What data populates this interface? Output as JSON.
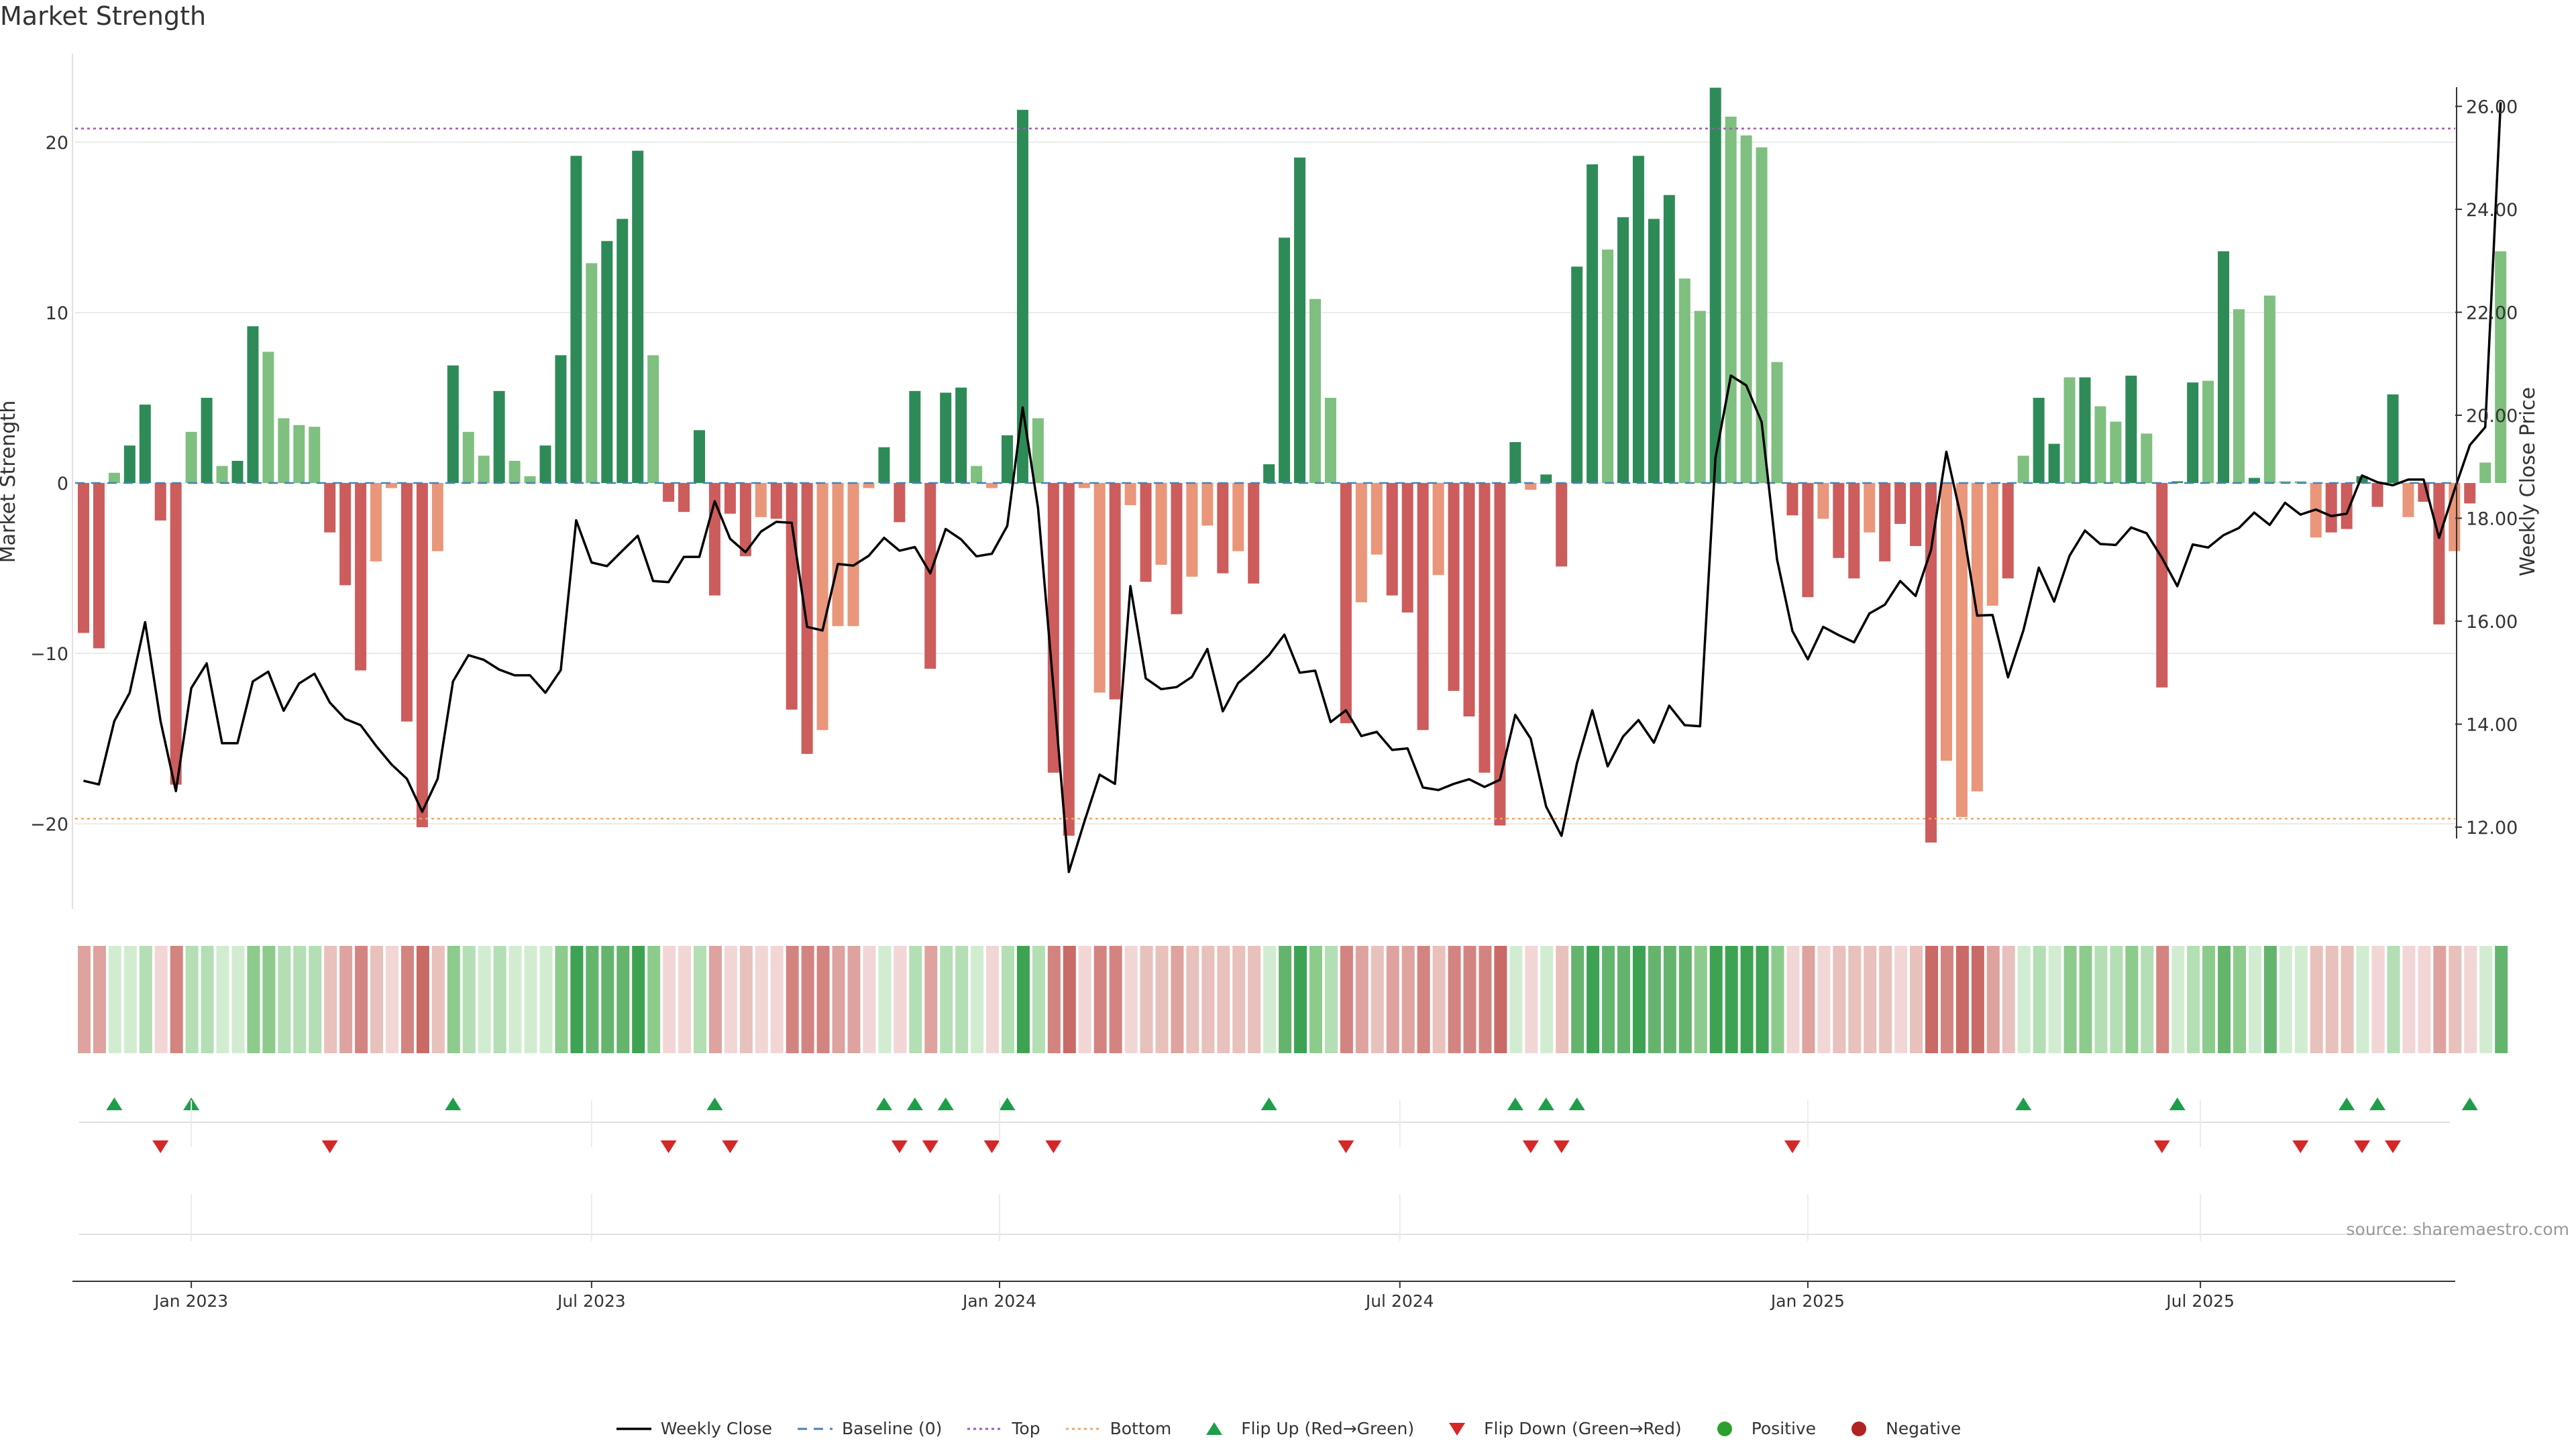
{
  "chart_title": "Market Strength",
  "source_note": "source: sharemaestro.com",
  "colors": {
    "strong_green": "#2e8b57",
    "light_green": "#7fbf7f",
    "strong_red": "#cd5c5c",
    "light_red": "#e9967a",
    "line": "#000000",
    "top_line": "#9b59b6",
    "bottom_line": "#f4a460",
    "baseline": "#4682b4",
    "flip_up": "#1e9e4a",
    "flip_down": "#d62728",
    "grid": "#ebebeb",
    "axis_text": "#333333"
  },
  "legend": [
    {
      "key": "weekly_close",
      "label": "Weekly Close",
      "kind": "line",
      "color": "#000000"
    },
    {
      "key": "baseline",
      "label": "Baseline (0)",
      "kind": "dash",
      "color": "#4682b4"
    },
    {
      "key": "top",
      "label": "Top",
      "kind": "dot",
      "color": "#9b59b6"
    },
    {
      "key": "bottom",
      "label": "Bottom",
      "kind": "dot",
      "color": "#f4a460"
    },
    {
      "key": "flip_up",
      "label": "Flip Up (Red→Green)",
      "kind": "tri-up",
      "color": "#1e9e4a"
    },
    {
      "key": "flip_down",
      "label": "Flip Down (Green→Red)",
      "kind": "tri-down",
      "color": "#d62728"
    },
    {
      "key": "positive",
      "label": "Positive",
      "kind": "circle",
      "color": "#2ca02c"
    },
    {
      "key": "negative",
      "label": "Negative",
      "kind": "circle",
      "color": "#b22222"
    }
  ],
  "chart_data": {
    "type": "bar+line",
    "title": "Market Strength",
    "ylabel": "Market Strength",
    "y2label": "Weekly Close Price",
    "ylim": [
      -25.5,
      25
    ],
    "y2lim": [
      10.8,
      26.4
    ],
    "y_ticks": [
      "20",
      "10",
      "0",
      "−10",
      "−20"
    ],
    "y_tick_values": [
      20,
      10,
      0,
      -10,
      -20
    ],
    "y2_ticks": [
      "12.00",
      "14.00",
      "16.00",
      "18.00",
      "20.00",
      "22.00",
      "24.00",
      "26.00"
    ],
    "y2_tick_values": [
      12,
      14,
      16,
      18,
      20,
      22,
      24,
      26
    ],
    "x_labels": [
      "Jan 2023",
      "Jul 2023",
      "Jan 2024",
      "Jul 2024",
      "Jan 2025",
      "Jul 2025"
    ],
    "x_label_weeks": [
      7,
      33,
      59.5,
      85.5,
      112,
      137.5
    ],
    "top_level": 20.8,
    "bottom_level": -19.7,
    "strength": [
      -8.8,
      -9.7,
      0.6,
      2.2,
      4.6,
      -2.2,
      -17.7,
      3.0,
      5.0,
      1.0,
      1.3,
      9.2,
      7.7,
      3.8,
      3.4,
      3.3,
      -2.9,
      -6.0,
      -11.0,
      -4.6,
      -0.3,
      -14.0,
      -20.2,
      -4.0,
      6.9,
      3.0,
      1.6,
      5.4,
      1.3,
      0.4,
      2.2,
      7.5,
      19.2,
      12.9,
      14.2,
      15.5,
      19.5,
      7.5,
      -1.1,
      -1.7,
      3.1,
      -6.6,
      -1.8,
      -4.3,
      -2.0,
      -2.1,
      -13.3,
      -15.9,
      -14.5,
      -8.4,
      -8.4,
      -0.3,
      2.1,
      -2.3,
      5.4,
      -10.9,
      5.3,
      5.6,
      1.0,
      -0.3,
      2.8,
      21.9,
      3.8,
      -17.0,
      -20.7,
      -0.3,
      -12.3,
      -12.7,
      -1.3,
      -5.8,
      -4.8,
      -7.7,
      -5.5,
      -2.5,
      -5.3,
      -4.0,
      -5.9,
      1.1,
      14.4,
      19.1,
      10.8,
      5.0,
      -14.1,
      -7.0,
      -4.2,
      -6.6,
      -7.6,
      -14.5,
      -5.4,
      -12.2,
      -13.7,
      -17.0,
      -20.1,
      2.4,
      -0.4,
      0.5,
      -4.9,
      12.7,
      18.7,
      13.7,
      15.6,
      19.2,
      15.5,
      16.9,
      12.0,
      10.1,
      23.2,
      21.5,
      20.4,
      19.7,
      7.1,
      -1.9,
      -6.7,
      -2.1,
      -4.4,
      -5.6,
      -2.9,
      -4.6,
      -2.4,
      -3.7,
      -21.1,
      -16.3,
      -19.6,
      -18.1,
      -7.2,
      -5.6,
      1.6,
      5.0,
      2.3,
      6.2,
      6.2,
      4.5,
      3.6,
      6.3,
      2.9,
      -12.0,
      0.1,
      5.9,
      6.0,
      13.6,
      10.2,
      0.3,
      11.0,
      0.1,
      0.1,
      -3.2,
      -2.9,
      -2.7,
      0.4,
      -1.4,
      5.2,
      -2.0,
      -1.1,
      -8.3,
      -4.0,
      -1.2,
      1.2,
      13.6
    ],
    "strength_shade": [
      1,
      1,
      0,
      1,
      1,
      1,
      1,
      0,
      1,
      0,
      1,
      1,
      0,
      0,
      0,
      0,
      1,
      1,
      1,
      0,
      0,
      1,
      1,
      0,
      1,
      0,
      0,
      1,
      0,
      0,
      1,
      1,
      1,
      0,
      1,
      1,
      1,
      0,
      1,
      1,
      1,
      1,
      1,
      1,
      0,
      1,
      1,
      1,
      0,
      0,
      0,
      0,
      1,
      1,
      1,
      1,
      1,
      1,
      0,
      0,
      1,
      1,
      0,
      1,
      1,
      0,
      0,
      1,
      0,
      1,
      0,
      1,
      0,
      0,
      1,
      0,
      1,
      1,
      1,
      1,
      0,
      0,
      1,
      0,
      0,
      1,
      1,
      1,
      0,
      1,
      1,
      1,
      1,
      1,
      0,
      1,
      1,
      1,
      1,
      0,
      1,
      1,
      1,
      1,
      0,
      0,
      1,
      0,
      0,
      0,
      0,
      1,
      1,
      0,
      1,
      1,
      0,
      1,
      1,
      1,
      1,
      0,
      0,
      0,
      0,
      1,
      0,
      1,
      1,
      0,
      1,
      0,
      0,
      1,
      0,
      1,
      1,
      1,
      0,
      1,
      0,
      1,
      0,
      0,
      0,
      0,
      1,
      1,
      1,
      1,
      1,
      0,
      1,
      1,
      0,
      1
    ],
    "close": [
      12.9,
      12.83,
      14.06,
      14.61,
      15.98,
      14.06,
      12.7,
      14.7,
      15.18,
      13.63,
      13.63,
      14.83,
      15.02,
      14.26,
      14.79,
      14.98,
      14.42,
      14.1,
      13.98,
      13.58,
      13.22,
      12.94,
      12.3,
      12.94,
      14.83,
      15.34,
      15.25,
      15.06,
      14.95,
      14.95,
      14.61,
      15.05,
      17.96,
      17.14,
      17.07,
      17.37,
      17.66,
      16.78,
      16.76,
      17.25,
      17.25,
      18.33,
      17.6,
      17.34,
      17.74,
      17.93,
      17.91,
      15.89,
      15.82,
      17.11,
      17.08,
      17.27,
      17.62,
      17.37,
      17.44,
      16.93,
      17.79,
      17.59,
      17.26,
      17.31,
      17.85,
      20.15,
      18.2,
      14.72,
      11.13,
      12.1,
      13.02,
      12.84,
      16.68,
      14.89,
      14.68,
      14.72,
      14.92,
      15.46,
      14.25,
      14.8,
      15.05,
      15.34,
      15.74,
      15.0,
      15.04,
      14.04,
      14.27,
      13.77,
      13.85,
      13.5,
      13.53,
      12.77,
      12.72,
      12.84,
      12.93,
      12.78,
      12.92,
      14.18,
      13.72,
      12.4,
      11.83,
      13.24,
      14.27,
      13.18,
      13.76,
      14.08,
      13.64,
      14.36,
      13.98,
      13.96,
      19.17,
      20.77,
      20.58,
      19.87,
      17.2,
      15.81,
      15.26,
      15.89,
      15.73,
      15.59,
      16.15,
      16.32,
      16.78,
      16.49,
      17.38,
      19.29,
      17.95,
      16.11,
      16.12,
      14.91,
      15.82,
      17.04,
      16.38,
      17.27,
      17.76,
      17.5,
      17.48,
      17.82,
      17.71,
      17.23,
      16.68,
      17.49,
      17.43,
      17.67,
      17.81,
      18.11,
      17.87,
      18.3,
      18.07,
      18.17,
      18.04,
      18.09,
      18.83,
      18.7,
      18.64,
      18.75,
      18.75,
      17.62,
      18.55,
      19.42,
      19.77,
      26.08
    ],
    "flip_up_weeks": [
      2,
      7,
      24,
      41,
      52,
      54,
      56,
      60,
      77,
      93,
      95,
      97,
      126,
      136,
      147,
      149,
      155
    ],
    "flip_down_weeks": [
      5,
      16,
      38,
      42,
      53,
      55,
      59,
      63,
      82,
      94,
      96,
      111,
      135,
      144,
      148,
      150
    ]
  }
}
